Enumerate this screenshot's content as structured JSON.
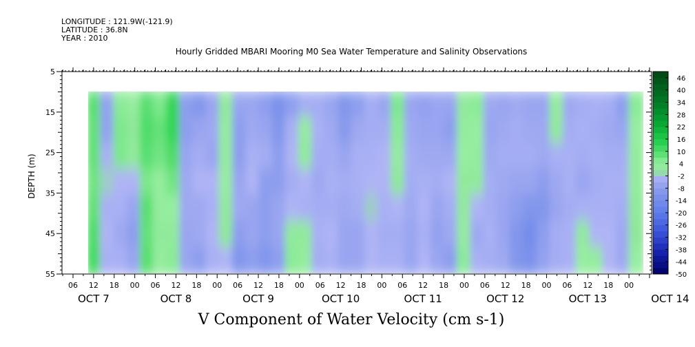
{
  "header": {
    "longitude": "LONGITUDE : 121.9W(-121.9)",
    "latitude": "LATITUDE : 36.8N",
    "year": "YEAR : 2010"
  },
  "chart_data": {
    "type": "heatmap",
    "title": "Hourly Gridded MBARI Mooring M0 Sea Water Temperature and Salinity Observations",
    "xlabel": "V Component of Water Velocity (cm s-1)",
    "ylabel": "DEPTH (m)",
    "ylim": [
      55,
      5
    ],
    "y_ticks": [
      5,
      15,
      25,
      35,
      45,
      55
    ],
    "y_minor_step": 1,
    "data_depth_range": [
      10,
      55
    ],
    "x_hour_labels": [
      "06",
      "12",
      "18",
      "00",
      "06",
      "12",
      "18",
      "00",
      "06",
      "12",
      "18",
      "00",
      "06",
      "12",
      "18",
      "00",
      "06",
      "12",
      "18",
      "00",
      "06",
      "12",
      "18",
      "00",
      "06",
      "12",
      "18",
      "00"
    ],
    "x_day_labels": [
      "OCT  7",
      "OCT  8",
      "OCT  9",
      "OCT 10",
      "OCT 11",
      "OCT 12",
      "OCT 13",
      "OCT 14"
    ],
    "colorbar": {
      "labels": [
        "46",
        "40",
        "34",
        "28",
        "22",
        "16",
        "10",
        "4",
        "-2",
        "-8",
        "-14",
        "-20",
        "-26",
        "-32",
        "-38",
        "-44",
        "-50"
      ],
      "levels": [
        -50,
        49
      ],
      "level_step": 3
    },
    "columns_v_cm_s": [
      [
        9,
        8,
        8,
        7,
        8,
        10,
        11
      ],
      [
        -7,
        -7,
        -3,
        -1,
        -3,
        -2,
        -3
      ],
      [
        5,
        6,
        6,
        -2,
        -3,
        -5,
        -3
      ],
      [
        3,
        1,
        2,
        -2,
        -6,
        -8,
        -6
      ],
      [
        9,
        10,
        9,
        6,
        9,
        8,
        9
      ],
      [
        6,
        8,
        7,
        3,
        3,
        2,
        3
      ],
      [
        13,
        13,
        10,
        7,
        4,
        2,
        5
      ],
      [
        -8,
        -8,
        -6,
        -5,
        -5,
        -6,
        -6
      ],
      [
        -10,
        -6,
        -4,
        -2,
        -5,
        -5,
        -8
      ],
      [
        -6,
        -5,
        -6,
        -2,
        -3,
        -2,
        -3
      ],
      [
        2,
        3,
        3,
        4,
        2,
        1,
        -2
      ],
      [
        -6,
        -8,
        -8,
        -6,
        -5,
        -8,
        -10
      ],
      [
        -6,
        -5,
        -3,
        -2,
        -6,
        -6,
        -8
      ],
      [
        -8,
        -6,
        -4,
        -8,
        -8,
        -8,
        -10
      ],
      [
        -12,
        -10,
        -8,
        -8,
        -6,
        -6,
        -8
      ],
      [
        -8,
        -3,
        -2,
        -4,
        -2,
        2,
        5
      ],
      [
        -4,
        3,
        2,
        -2,
        -3,
        2,
        3
      ],
      [
        -4,
        -3,
        -4,
        -5,
        -4,
        -3,
        -4
      ],
      [
        -6,
        -5,
        -4,
        -3,
        -4,
        -2,
        -3
      ],
      [
        -10,
        -9,
        -6,
        -4,
        -5,
        -6,
        -6
      ],
      [
        -8,
        -5,
        -3,
        -3,
        -4,
        -6,
        -6
      ],
      [
        -4,
        -4,
        -3,
        -2,
        -1,
        -2,
        -2
      ],
      [
        -6,
        -4,
        -2,
        -2,
        -3,
        -4,
        -3
      ],
      [
        6,
        5,
        3,
        1,
        -2,
        -4,
        -3
      ],
      [
        -6,
        -5,
        -4,
        -4,
        -5,
        -6,
        -6
      ],
      [
        -7,
        -6,
        -5,
        -3,
        -2,
        -3,
        -2
      ],
      [
        -6,
        -6,
        -5,
        -4,
        -6,
        -7,
        -6
      ],
      [
        -6,
        -8,
        -5,
        -2,
        -4,
        -5,
        -8
      ],
      [
        2,
        3,
        4,
        2,
        2,
        3,
        5
      ],
      [
        5,
        4,
        3,
        2,
        -2,
        -5,
        -3
      ],
      [
        -5,
        -6,
        -5,
        -4,
        -4,
        -3,
        -4
      ],
      [
        -6,
        -5,
        -4,
        -5,
        -6,
        -6,
        -5
      ],
      [
        -5,
        -4,
        -4,
        -6,
        -8,
        -10,
        -10
      ],
      [
        -6,
        -5,
        -4,
        -6,
        -10,
        -14,
        -12
      ],
      [
        -6,
        -5,
        -5,
        -8,
        -10,
        -8,
        -7
      ],
      [
        3,
        2,
        -3,
        -5,
        -6,
        -4,
        -4
      ],
      [
        -5,
        -4,
        -3,
        -3,
        -4,
        -3,
        -3
      ],
      [
        -4,
        -3,
        -4,
        -6,
        -3,
        2,
        4
      ],
      [
        -3,
        -4,
        -3,
        -4,
        -3,
        -2,
        3
      ],
      [
        -4,
        -5,
        -4,
        -3,
        -3,
        -2,
        -2
      ],
      [
        -8,
        -6,
        -4,
        -3,
        -4,
        -5,
        -5
      ],
      [
        5,
        4,
        3,
        3,
        2,
        1,
        4
      ]
    ]
  }
}
